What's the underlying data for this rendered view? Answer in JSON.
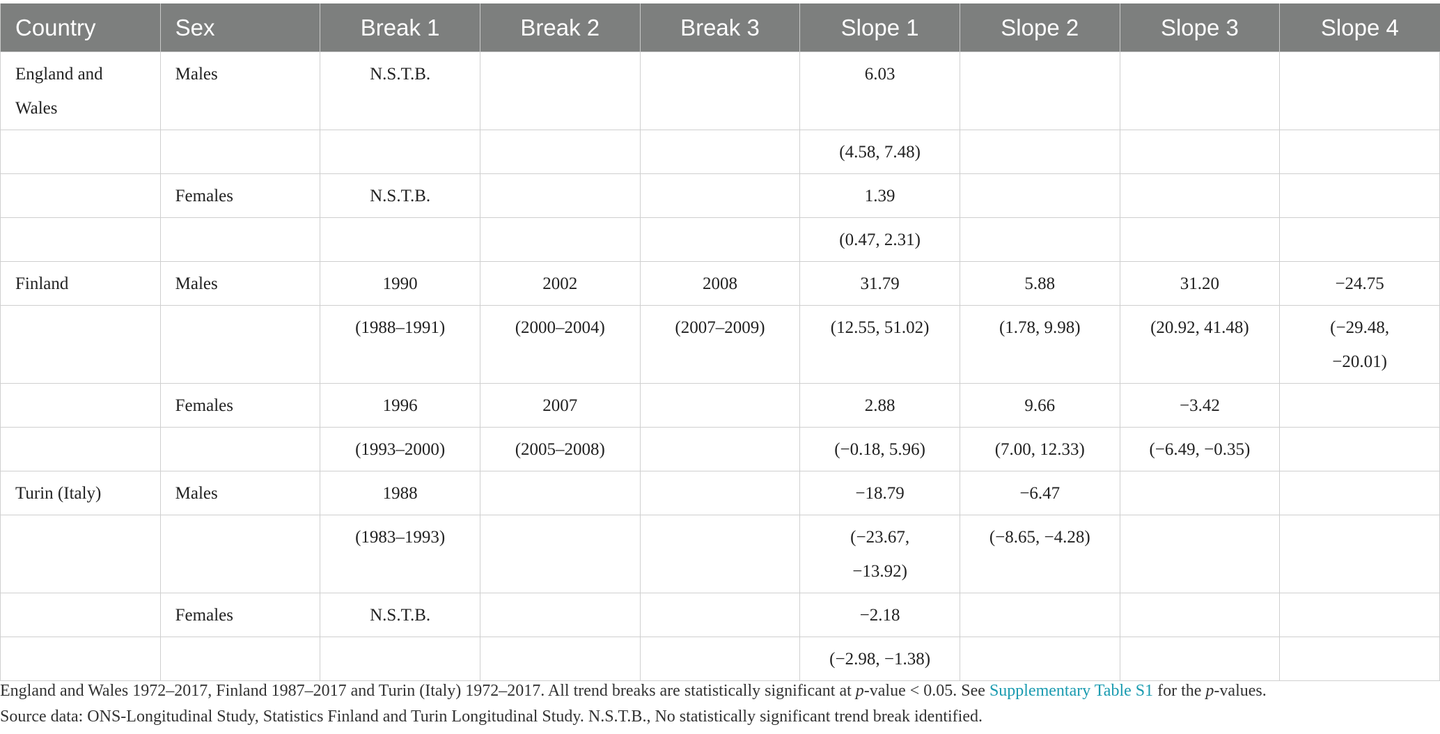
{
  "table": {
    "header": [
      "Country",
      "Sex",
      "Break 1",
      "Break 2",
      "Break 3",
      "Slope 1",
      "Slope 2",
      "Slope 3",
      "Slope 4"
    ],
    "rows": [
      [
        "England and Wales",
        "Males",
        "N.S.T.B.",
        null,
        null,
        "6.03",
        null,
        null,
        null
      ],
      [
        null,
        null,
        null,
        null,
        null,
        "(4.58, 7.48)",
        null,
        null,
        null
      ],
      [
        null,
        "Females",
        "N.S.T.B.",
        null,
        null,
        "1.39",
        null,
        null,
        null
      ],
      [
        null,
        null,
        null,
        null,
        null,
        "(0.47, 2.31)",
        null,
        null,
        null
      ],
      [
        "Finland",
        "Males",
        "1990",
        "2002",
        "2008",
        "31.79",
        "5.88",
        "31.20",
        "−24.75"
      ],
      [
        null,
        null,
        "(1988–1991)",
        "(2000–2004)",
        "(2007–2009)",
        "(12.55, 51.02)",
        "(1.78, 9.98)",
        "(20.92, 41.48)",
        "(−29.48, −20.01)"
      ],
      [
        null,
        "Females",
        "1996",
        "2007",
        null,
        "2.88",
        "9.66",
        "−3.42",
        null
      ],
      [
        null,
        null,
        "(1993–2000)",
        "(2005–2008)",
        null,
        "(−0.18, 5.96)",
        "(7.00, 12.33)",
        "(−6.49, −0.35)",
        null
      ],
      [
        "Turin (Italy)",
        "Males",
        "1988",
        null,
        null,
        "−18.79",
        "−6.47",
        null,
        null
      ],
      [
        null,
        null,
        "(1983–1993)",
        null,
        null,
        "(−23.67, −13.92)",
        "(−8.65, −4.28)",
        null,
        null
      ],
      [
        null,
        "Females",
        "N.S.T.B.",
        null,
        null,
        "−2.18",
        null,
        null,
        null
      ],
      [
        null,
        null,
        null,
        null,
        null,
        "(−2.98, −1.38)",
        null,
        null,
        null
      ]
    ]
  },
  "footnote": {
    "line1": [
      "England and Wales 1972–2017, Finland 1987–2017 and Turin (Italy) 1972–2017. All trend breaks are statistically significant at ",
      "p",
      "-value < 0.05. See ",
      "Supplementary Table S1",
      " for the ",
      "p",
      "-values."
    ],
    "line2": "Source data: ONS-Longitudinal Study, Statistics Finland and Turin Longitudinal Study. N.S.T.B., No statistically significant trend break identified."
  }
}
